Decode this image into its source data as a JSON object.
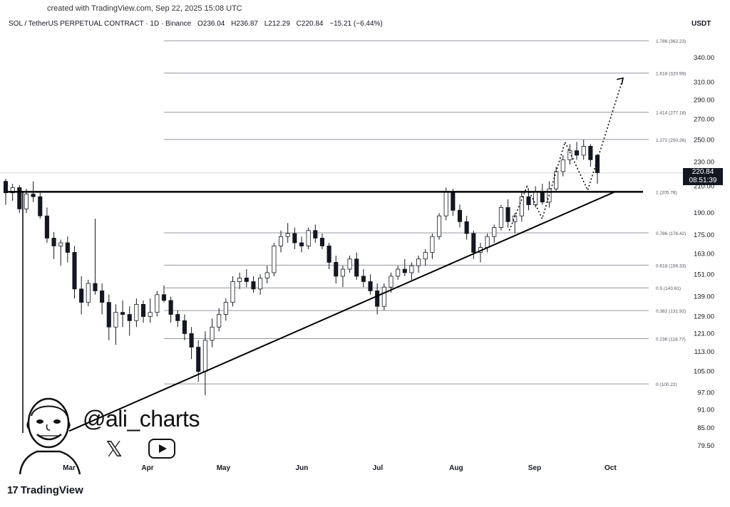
{
  "header": {
    "created": "created with TradingView.com, Sep 22, 2025 15:08 UTC",
    "symbol": "SOL / TetherUS PERPETUAL CONTRACT · 1D · Binance",
    "open": "O236.04",
    "high": "H236.87",
    "low": "L212.29",
    "close": "C220.84",
    "change": "−15.21 (−6.44%)",
    "currency": "USDT"
  },
  "last_price": {
    "value": "220.84",
    "countdown": "08:51:39"
  },
  "watermark": {
    "handle": "@ali_charts",
    "x_icon": "x-logo-icon",
    "youtube_icon": "youtube-play-icon"
  },
  "brand": {
    "name": "TradingView",
    "logo_text": "17"
  },
  "colors": {
    "up": "#131722",
    "down": "#131722",
    "grid": "#b2b5be",
    "trend": "#000000",
    "projection": "#000000",
    "price_tag_bg": "#131722"
  },
  "chart_data": {
    "type": "candlestick",
    "title": "SOL / TetherUS PERPETUAL CONTRACT · 1D · Binance",
    "y_scale": "log",
    "y_ticks": [
      "340.00",
      "310.00",
      "290.00",
      "270.00",
      "250.00",
      "230.00",
      "210.00",
      "190.00",
      "175.00",
      "163.00",
      "151.00",
      "139.00",
      "129.00",
      "121.00",
      "113.00",
      "105.00",
      "97.00",
      "91.00",
      "85.00",
      "79.50"
    ],
    "x_ticks": [
      "Mar",
      "Apr",
      "May",
      "Jun",
      "Jul",
      "Aug",
      "Sep",
      "Oct"
    ],
    "fib_levels": [
      {
        "ratio": 1.786,
        "price": 362.23,
        "label": "1.786 (362.23)"
      },
      {
        "ratio": 1.618,
        "price": 320.99,
        "label": "1.618 (320.99)"
      },
      {
        "ratio": 1.414,
        "price": 277.18,
        "label": "1.414 (277.18)"
      },
      {
        "ratio": 1.272,
        "price": 250.26,
        "label": "1.272 (250.26)"
      },
      {
        "ratio": 1,
        "price": 205.78,
        "label": "1 (205.78)"
      },
      {
        "ratio": 0.786,
        "price": 176.42,
        "label": "0.786 (176.42)"
      },
      {
        "ratio": 0.618,
        "price": 156.33,
        "label": "0.618 (156.33)"
      },
      {
        "ratio": 0.5,
        "price": 143.61,
        "label": "0.5 (143.61)"
      },
      {
        "ratio": 0.382,
        "price": 131.92,
        "label": "0.382 (131.92)"
      },
      {
        "ratio": 0.236,
        "price": 118.77,
        "label": "0.236 (118.77)"
      },
      {
        "ratio": 0,
        "price": 100.22,
        "label": "0 (100.22)"
      }
    ],
    "resistance": 205.78,
    "support_trendline": {
      "start": {
        "date": "2025-03-01",
        "price": 84
      },
      "end": {
        "date": "2025-10-03",
        "price": 206
      }
    },
    "projection": [
      {
        "date": "2025-08-22",
        "price": 178
      },
      {
        "date": "2025-08-29",
        "price": 210
      },
      {
        "date": "2025-09-04",
        "price": 186
      },
      {
        "date": "2025-09-13",
        "price": 248
      },
      {
        "date": "2025-09-22",
        "price": 207
      },
      {
        "date": "2025-10-06",
        "price": 315
      }
    ],
    "candles": [
      [
        214,
        216,
        196,
        205
      ],
      [
        205,
        212,
        199,
        209
      ],
      [
        209,
        211,
        190,
        193
      ],
      [
        193,
        208,
        190,
        204
      ],
      [
        204,
        214,
        198,
        202
      ],
      [
        202,
        205,
        186,
        188
      ],
      [
        188,
        194,
        170,
        173
      ],
      [
        173,
        177,
        160,
        168
      ],
      [
        168,
        172,
        156,
        170
      ],
      [
        170,
        174,
        158,
        164
      ],
      [
        164,
        168,
        138,
        143
      ],
      [
        143,
        150,
        130,
        136
      ],
      [
        136,
        148,
        134,
        146
      ],
      [
        146,
        186,
        140,
        142
      ],
      [
        142,
        146,
        130,
        136
      ],
      [
        136,
        140,
        118,
        124
      ],
      [
        124,
        135,
        116,
        131
      ],
      [
        131,
        137,
        124,
        130
      ],
      [
        130,
        134,
        120,
        127
      ],
      [
        127,
        138,
        124,
        135
      ],
      [
        135,
        137,
        126,
        129
      ],
      [
        129,
        138,
        126,
        131
      ],
      [
        131,
        142,
        129,
        140
      ],
      [
        140,
        145,
        136,
        137
      ],
      [
        137,
        139,
        126,
        130
      ],
      [
        130,
        132,
        124,
        127
      ],
      [
        127,
        130,
        118,
        121
      ],
      [
        121,
        124,
        110,
        115
      ],
      [
        115,
        118,
        101,
        105
      ],
      [
        105,
        122,
        96,
        118
      ],
      [
        118,
        128,
        115,
        124
      ],
      [
        124,
        133,
        122,
        130
      ],
      [
        130,
        138,
        127,
        136
      ],
      [
        136,
        150,
        134,
        147
      ],
      [
        147,
        152,
        143,
        149
      ],
      [
        149,
        154,
        144,
        147
      ],
      [
        147,
        150,
        141,
        143
      ],
      [
        143,
        151,
        140,
        149
      ],
      [
        149,
        156,
        146,
        152
      ],
      [
        152,
        170,
        150,
        168
      ],
      [
        168,
        178,
        164,
        174
      ],
      [
        174,
        183,
        170,
        176
      ],
      [
        176,
        180,
        166,
        170
      ],
      [
        170,
        174,
        164,
        168
      ],
      [
        168,
        180,
        166,
        178
      ],
      [
        178,
        182,
        170,
        173
      ],
      [
        173,
        176,
        166,
        168
      ],
      [
        168,
        170,
        154,
        158
      ],
      [
        158,
        162,
        146,
        150
      ],
      [
        150,
        156,
        144,
        154
      ],
      [
        154,
        162,
        152,
        160
      ],
      [
        160,
        164,
        148,
        150
      ],
      [
        150,
        154,
        144,
        147
      ],
      [
        147,
        151,
        140,
        142
      ],
      [
        142,
        146,
        130,
        134
      ],
      [
        134,
        146,
        132,
        144
      ],
      [
        144,
        152,
        141,
        150
      ],
      [
        150,
        156,
        148,
        154
      ],
      [
        154,
        160,
        150,
        152
      ],
      [
        152,
        158,
        148,
        156
      ],
      [
        156,
        162,
        152,
        160
      ],
      [
        160,
        166,
        156,
        164
      ],
      [
        164,
        176,
        160,
        174
      ],
      [
        174,
        190,
        172,
        188
      ],
      [
        188,
        209,
        185,
        206
      ],
      [
        206,
        208,
        188,
        192
      ],
      [
        192,
        196,
        180,
        184
      ],
      [
        184,
        188,
        172,
        176
      ],
      [
        176,
        178,
        160,
        164
      ],
      [
        164,
        170,
        158,
        167
      ],
      [
        167,
        176,
        164,
        174
      ],
      [
        174,
        182,
        170,
        180
      ],
      [
        180,
        196,
        178,
        194
      ],
      [
        194,
        200,
        180,
        184
      ],
      [
        184,
        190,
        176,
        188
      ],
      [
        188,
        206,
        184,
        202
      ],
      [
        202,
        207,
        192,
        196
      ],
      [
        196,
        210,
        194,
        206
      ],
      [
        206,
        212,
        196,
        198
      ],
      [
        198,
        214,
        194,
        208
      ],
      [
        208,
        226,
        206,
        222
      ],
      [
        222,
        236,
        218,
        232
      ],
      [
        232,
        246,
        228,
        240
      ],
      [
        240,
        248,
        232,
        236
      ],
      [
        236,
        250,
        232,
        244
      ],
      [
        244,
        246,
        226,
        232
      ],
      [
        236,
        237,
        212,
        221
      ]
    ],
    "last": 220.84
  }
}
